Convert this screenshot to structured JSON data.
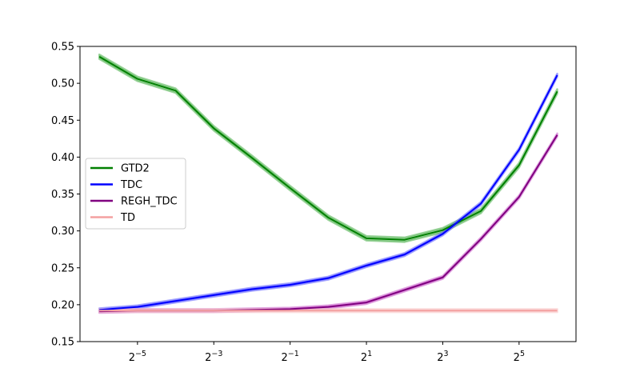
{
  "chart_data": {
    "type": "line",
    "title": "",
    "xlabel": "",
    "ylabel": "",
    "x_scale": "log2",
    "x": [
      0.015625,
      0.03125,
      0.0625,
      0.125,
      0.25,
      0.5,
      1,
      2,
      4,
      8,
      16,
      32,
      64
    ],
    "xlim": [
      0.011,
      90.0
    ],
    "ylim": [
      0.15,
      0.55
    ],
    "x_ticks": [
      {
        "value": 0.03125,
        "base": "2",
        "exp": "−5"
      },
      {
        "value": 0.125,
        "base": "2",
        "exp": "−3"
      },
      {
        "value": 0.5,
        "base": "2",
        "exp": "−1"
      },
      {
        "value": 2,
        "base": "2",
        "exp": "1"
      },
      {
        "value": 8,
        "base": "2",
        "exp": "3"
      },
      {
        "value": 32,
        "base": "2",
        "exp": "5"
      }
    ],
    "y_ticks": [
      {
        "value": 0.15,
        "label": "0.15"
      },
      {
        "value": 0.2,
        "label": "0.20"
      },
      {
        "value": 0.25,
        "label": "0.25"
      },
      {
        "value": 0.3,
        "label": "0.30"
      },
      {
        "value": 0.35,
        "label": "0.35"
      },
      {
        "value": 0.4,
        "label": "0.40"
      },
      {
        "value": 0.45,
        "label": "0.45"
      },
      {
        "value": 0.5,
        "label": "0.50"
      },
      {
        "value": 0.55,
        "label": "0.55"
      }
    ],
    "grid": false,
    "legend_position": "center-left",
    "series": [
      {
        "name": "GTD2",
        "color": "#008000",
        "band_color": "#5cb85c",
        "values": [
          0.536,
          0.506,
          0.49,
          0.439,
          0.399,
          0.358,
          0.318,
          0.29,
          0.288,
          0.301,
          0.327,
          0.389,
          0.489
        ],
        "band": 0.003
      },
      {
        "name": "TDC",
        "color": "#0000ff",
        "band_color": "#6666ff",
        "values": [
          0.193,
          0.197,
          0.205,
          0.213,
          0.221,
          0.227,
          0.236,
          0.253,
          0.268,
          0.296,
          0.337,
          0.41,
          0.511
        ],
        "band": 0.002
      },
      {
        "name": "REGH_TDC",
        "color": "#800080",
        "band_color": "#cc66cc",
        "values": [
          0.191,
          0.192,
          0.192,
          0.192,
          0.193,
          0.194,
          0.197,
          0.203,
          0.22,
          0.237,
          0.289,
          0.346,
          0.43
        ],
        "band": 0.002
      },
      {
        "name": "TD",
        "color": "#f4a0a0",
        "band_color": "#f8c8c8",
        "values": [
          0.192,
          0.192,
          0.192,
          0.192,
          0.192,
          0.192,
          0.192,
          0.192,
          0.192,
          0.192,
          0.192,
          0.192,
          0.192
        ],
        "band": 0.002
      }
    ]
  }
}
